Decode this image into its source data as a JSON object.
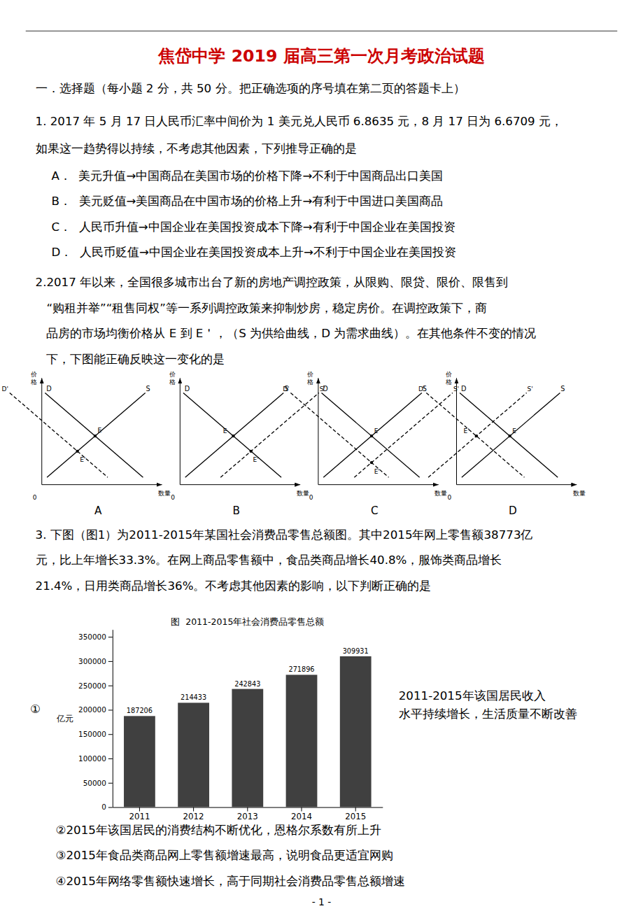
{
  "chart_data": {
    "type": "bar",
    "title": "图  2011-2015年社会消费品零售总额",
    "categories": [
      "2011",
      "2012",
      "2013",
      "2014",
      "2015"
    ],
    "values": [
      187206,
      214433,
      242843,
      271896,
      309931
    ],
    "color": "#404040",
    "ylabel": "亿元",
    "ylim": [
      0,
      365000
    ],
    "yticks": [
      0,
      50000,
      100000,
      150000,
      200000,
      250000,
      300000,
      350000
    ],
    "data_labels": true,
    "grid": false,
    "annotations": [
      "焦岱中学 2019 届高三第一次月考政治试题",
      "一．选择题（每小题 2 分，共 50 分。把正确选项的序号填在第二页的答题卡上）",
      "1. 2017 年 5 月 17 日人民币汇率中间价为 1 美元兑人民币 6.8635 元，8 月 17 日为 6.6709 元，",
      "如果这一趋势得以持续，不考虑其他因素，下列推导正确的是",
      "A．  美元升值→中国商品在美国市场的价格下降→不利于中国商品出口美国",
      "B．  美元贬值→美国商品在中国市场的价格上升→有利于中国进口美国商品",
      "C．  人民币升值→中国企业在美国投资成本下降→有利于中国企业在美国投资",
      "D．  人民币贬值→中国企业在美国投资成本上升→不利于中国企业在美国投资",
      "2.2017 年以来，全国很多城市出台了新的房地产调控政策，从限购、限贷、限价、限售到",
      "   “购租并举”“租售同权”等一系列调控政策来抑制炒房，稳定房价。在调控政策下，商",
      "   品房的市场均衡价格从 E 到 E＇，（S 为供给曲线，D 为需求曲线）。在其他条件不变的情况",
      "   下，下图能正确反映这一变化的是",
      "A",
      "B",
      "C",
      "D",
      "价格",
      "数量",
      "0",
      "S",
      "S'",
      "D",
      "D'",
      "E",
      "E'",
      "3. 下图（图1）为2011-2015年某国社会消费品零售总额图。其中2015年网上零售额38773亿",
      "元，比上年增长33.3%。在网上商品零售额中，食品类商品增长40.8%，服饰类商品增长",
      "21.4%，日用类商品增长36%。不考虑其他因素的影响，以下判断正确的是",
      "①",
      "2011-2015年该国居民收入",
      "水平持续增长，生活质量不断改善",
      "  ②2015年该国居民的消费结构不断优化，恩格尔系数有所上升",
      "  ③2015年食品类商品网上零售额增速最高，说明食品更适宜网购",
      "  ④2015年网络零售额快速增长，高于同期社会消费品零售总额增速",
      "- 1 -"
    ]
  }
}
